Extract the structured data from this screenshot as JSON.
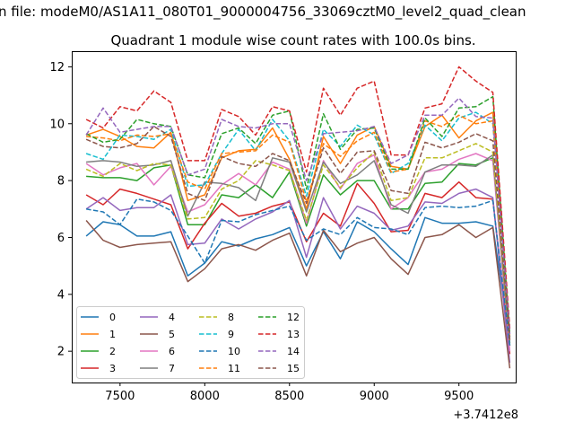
{
  "figure": {
    "suptitle": "n file: modeM0/AS1A11_080T01_9000004756_33069cztM0_level2_quad_clean"
  },
  "chart_data": {
    "type": "line",
    "title": "Quadrant 1 module wise count rates with 100.0s bins.",
    "xlabel": "",
    "ylabel": "",
    "x_offset_label": "+3.7412e8",
    "xlim": [
      7215,
      9835
    ],
    "ylim": [
      0.9,
      12.55
    ],
    "xticks": [
      7500,
      8000,
      8500,
      9000,
      9500
    ],
    "yticks": [
      2,
      4,
      6,
      8,
      10,
      12
    ],
    "grid": false,
    "legend_position": "lower-left",
    "x": [
      7300,
      7400,
      7500,
      7600,
      7700,
      7800,
      7900,
      8000,
      8100,
      8200,
      8300,
      8400,
      8500,
      8600,
      8700,
      8800,
      8900,
      9000,
      9100,
      9200,
      9300,
      9400,
      9500,
      9600,
      9700,
      9800
    ],
    "series": [
      {
        "name": "0",
        "color": "#1f77b4",
        "dash": "solid",
        "values": [
          6.05,
          6.55,
          6.45,
          6.05,
          6.05,
          6.2,
          4.65,
          5.1,
          5.85,
          5.7,
          5.95,
          6.1,
          6.35,
          5.0,
          6.2,
          5.25,
          6.55,
          6.2,
          5.6,
          5.05,
          6.7,
          6.5,
          6.5,
          6.55,
          6.4,
          2.3
        ]
      },
      {
        "name": "1",
        "color": "#ff7f0e",
        "dash": "solid",
        "values": [
          9.6,
          9.8,
          9.55,
          9.2,
          9.15,
          9.7,
          7.3,
          7.5,
          8.8,
          9.05,
          9.1,
          9.85,
          8.75,
          7.0,
          9.55,
          8.6,
          9.6,
          9.9,
          8.5,
          8.4,
          9.9,
          10.3,
          9.5,
          10.1,
          10.4,
          2.5
        ]
      },
      {
        "name": "2",
        "color": "#2ca02c",
        "dash": "solid",
        "values": [
          8.15,
          8.1,
          8.1,
          8.0,
          8.45,
          8.55,
          6.45,
          6.45,
          7.5,
          7.4,
          7.85,
          7.4,
          8.3,
          6.4,
          8.2,
          7.5,
          8.0,
          8.0,
          7.0,
          7.0,
          7.9,
          7.95,
          8.6,
          8.55,
          8.8,
          2.2
        ]
      },
      {
        "name": "3",
        "color": "#d62728",
        "dash": "solid",
        "values": [
          7.5,
          7.15,
          7.7,
          7.55,
          7.35,
          7.15,
          5.6,
          6.5,
          7.2,
          6.75,
          6.85,
          7.1,
          7.25,
          5.85,
          6.85,
          6.4,
          7.9,
          7.2,
          6.2,
          6.25,
          7.55,
          7.4,
          7.95,
          7.4,
          7.35,
          1.9
        ]
      },
      {
        "name": "4",
        "color": "#9467bd",
        "dash": "solid",
        "values": [
          7.0,
          7.4,
          6.95,
          7.05,
          7.05,
          7.5,
          5.75,
          5.8,
          6.65,
          6.3,
          6.65,
          6.9,
          7.3,
          5.3,
          7.4,
          6.3,
          7.1,
          6.85,
          6.25,
          6.4,
          7.25,
          7.2,
          7.55,
          7.7,
          7.4,
          1.6
        ]
      },
      {
        "name": "5",
        "color": "#8c564b",
        "dash": "solid",
        "values": [
          6.6,
          5.9,
          5.65,
          5.75,
          5.8,
          5.85,
          4.45,
          4.9,
          5.6,
          5.75,
          5.55,
          5.9,
          6.15,
          4.65,
          6.25,
          5.5,
          5.8,
          6.0,
          5.25,
          4.7,
          6.0,
          6.1,
          6.45,
          6.0,
          6.35,
          1.4
        ]
      },
      {
        "name": "6",
        "color": "#e377c2",
        "dash": "solid",
        "values": [
          8.6,
          8.2,
          8.45,
          8.6,
          7.85,
          8.5,
          6.9,
          7.15,
          7.85,
          8.25,
          7.85,
          8.65,
          8.4,
          6.5,
          8.7,
          7.7,
          8.6,
          8.9,
          7.0,
          7.4,
          8.3,
          8.4,
          8.75,
          8.95,
          8.7,
          2.0
        ]
      },
      {
        "name": "7",
        "color": "#7f7f7f",
        "dash": "solid",
        "values": [
          8.65,
          8.7,
          8.65,
          8.5,
          8.55,
          8.7,
          6.75,
          7.95,
          7.9,
          7.75,
          7.3,
          8.8,
          8.65,
          6.9,
          8.65,
          7.9,
          8.2,
          8.7,
          7.15,
          6.85,
          8.3,
          8.55,
          8.55,
          8.5,
          8.9,
          2.2
        ]
      },
      {
        "name": "8",
        "color": "#bcbd22",
        "dash": "dashed",
        "values": [
          8.4,
          8.15,
          8.6,
          8.35,
          8.6,
          8.55,
          6.65,
          6.7,
          7.7,
          8.0,
          8.7,
          8.55,
          8.35,
          6.6,
          8.55,
          7.75,
          8.45,
          9.0,
          7.3,
          7.4,
          8.8,
          8.8,
          9.05,
          9.3,
          9.0,
          2.3
        ]
      },
      {
        "name": "9",
        "color": "#17becf",
        "dash": "dashed",
        "values": [
          8.95,
          8.75,
          9.6,
          9.55,
          9.45,
          9.8,
          7.8,
          7.85,
          8.95,
          9.8,
          9.05,
          10.15,
          9.4,
          7.45,
          9.8,
          9.2,
          9.95,
          9.6,
          8.25,
          8.6,
          9.95,
          9.4,
          10.2,
          10.4,
          10.0,
          2.5
        ]
      },
      {
        "name": "10",
        "color": "#1f77b4",
        "dash": "dashed",
        "values": [
          7.0,
          6.9,
          6.45,
          7.35,
          7.25,
          6.95,
          6.05,
          5.1,
          6.6,
          6.55,
          6.8,
          6.95,
          7.1,
          5.9,
          6.3,
          6.1,
          6.7,
          6.35,
          6.3,
          6.1,
          7.05,
          7.1,
          7.05,
          7.1,
          7.3,
          2.2
        ]
      },
      {
        "name": "11",
        "color": "#ff7f0e",
        "dash": "dashed",
        "values": [
          9.55,
          9.5,
          9.4,
          9.6,
          9.55,
          9.65,
          7.95,
          7.7,
          8.95,
          9.0,
          9.05,
          9.6,
          9.35,
          7.25,
          9.3,
          8.85,
          9.4,
          9.7,
          8.3,
          8.4,
          10.1,
          9.9,
          10.3,
          10.0,
          10.1,
          2.4
        ]
      },
      {
        "name": "12",
        "color": "#2ca02c",
        "dash": "dashed",
        "values": [
          9.65,
          9.35,
          9.45,
          10.15,
          10.0,
          9.9,
          8.2,
          8.1,
          9.65,
          9.85,
          9.3,
          10.3,
          10.45,
          7.7,
          10.35,
          9.1,
          9.8,
          9.85,
          8.4,
          8.4,
          10.2,
          9.55,
          10.55,
          10.6,
          10.95,
          2.6
        ]
      },
      {
        "name": "13",
        "color": "#d62728",
        "dash": "dashed",
        "values": [
          10.15,
          9.85,
          10.6,
          10.45,
          11.15,
          10.75,
          8.7,
          8.7,
          10.5,
          10.25,
          9.6,
          10.6,
          10.45,
          8.3,
          11.25,
          10.3,
          11.25,
          11.5,
          8.9,
          8.9,
          10.55,
          10.7,
          12.0,
          11.5,
          11.1,
          2.8
        ]
      },
      {
        "name": "14",
        "color": "#9467bd",
        "dash": "dashed",
        "values": [
          9.6,
          10.55,
          9.7,
          9.8,
          9.9,
          9.9,
          8.2,
          8.4,
          10.15,
          9.9,
          9.85,
          10.0,
          10.0,
          8.0,
          9.65,
          9.7,
          9.75,
          9.9,
          8.6,
          8.9,
          10.3,
          10.3,
          10.9,
          10.25,
          10.2,
          2.6
        ]
      },
      {
        "name": "15",
        "color": "#8c564b",
        "dash": "dashed",
        "values": [
          9.45,
          9.2,
          9.15,
          9.3,
          9.9,
          9.55,
          7.55,
          7.3,
          8.85,
          8.6,
          8.5,
          8.95,
          8.7,
          7.2,
          9.15,
          8.25,
          9.0,
          9.05,
          7.65,
          7.55,
          9.35,
          9.15,
          9.35,
          9.65,
          9.4,
          2.4
        ]
      }
    ]
  }
}
